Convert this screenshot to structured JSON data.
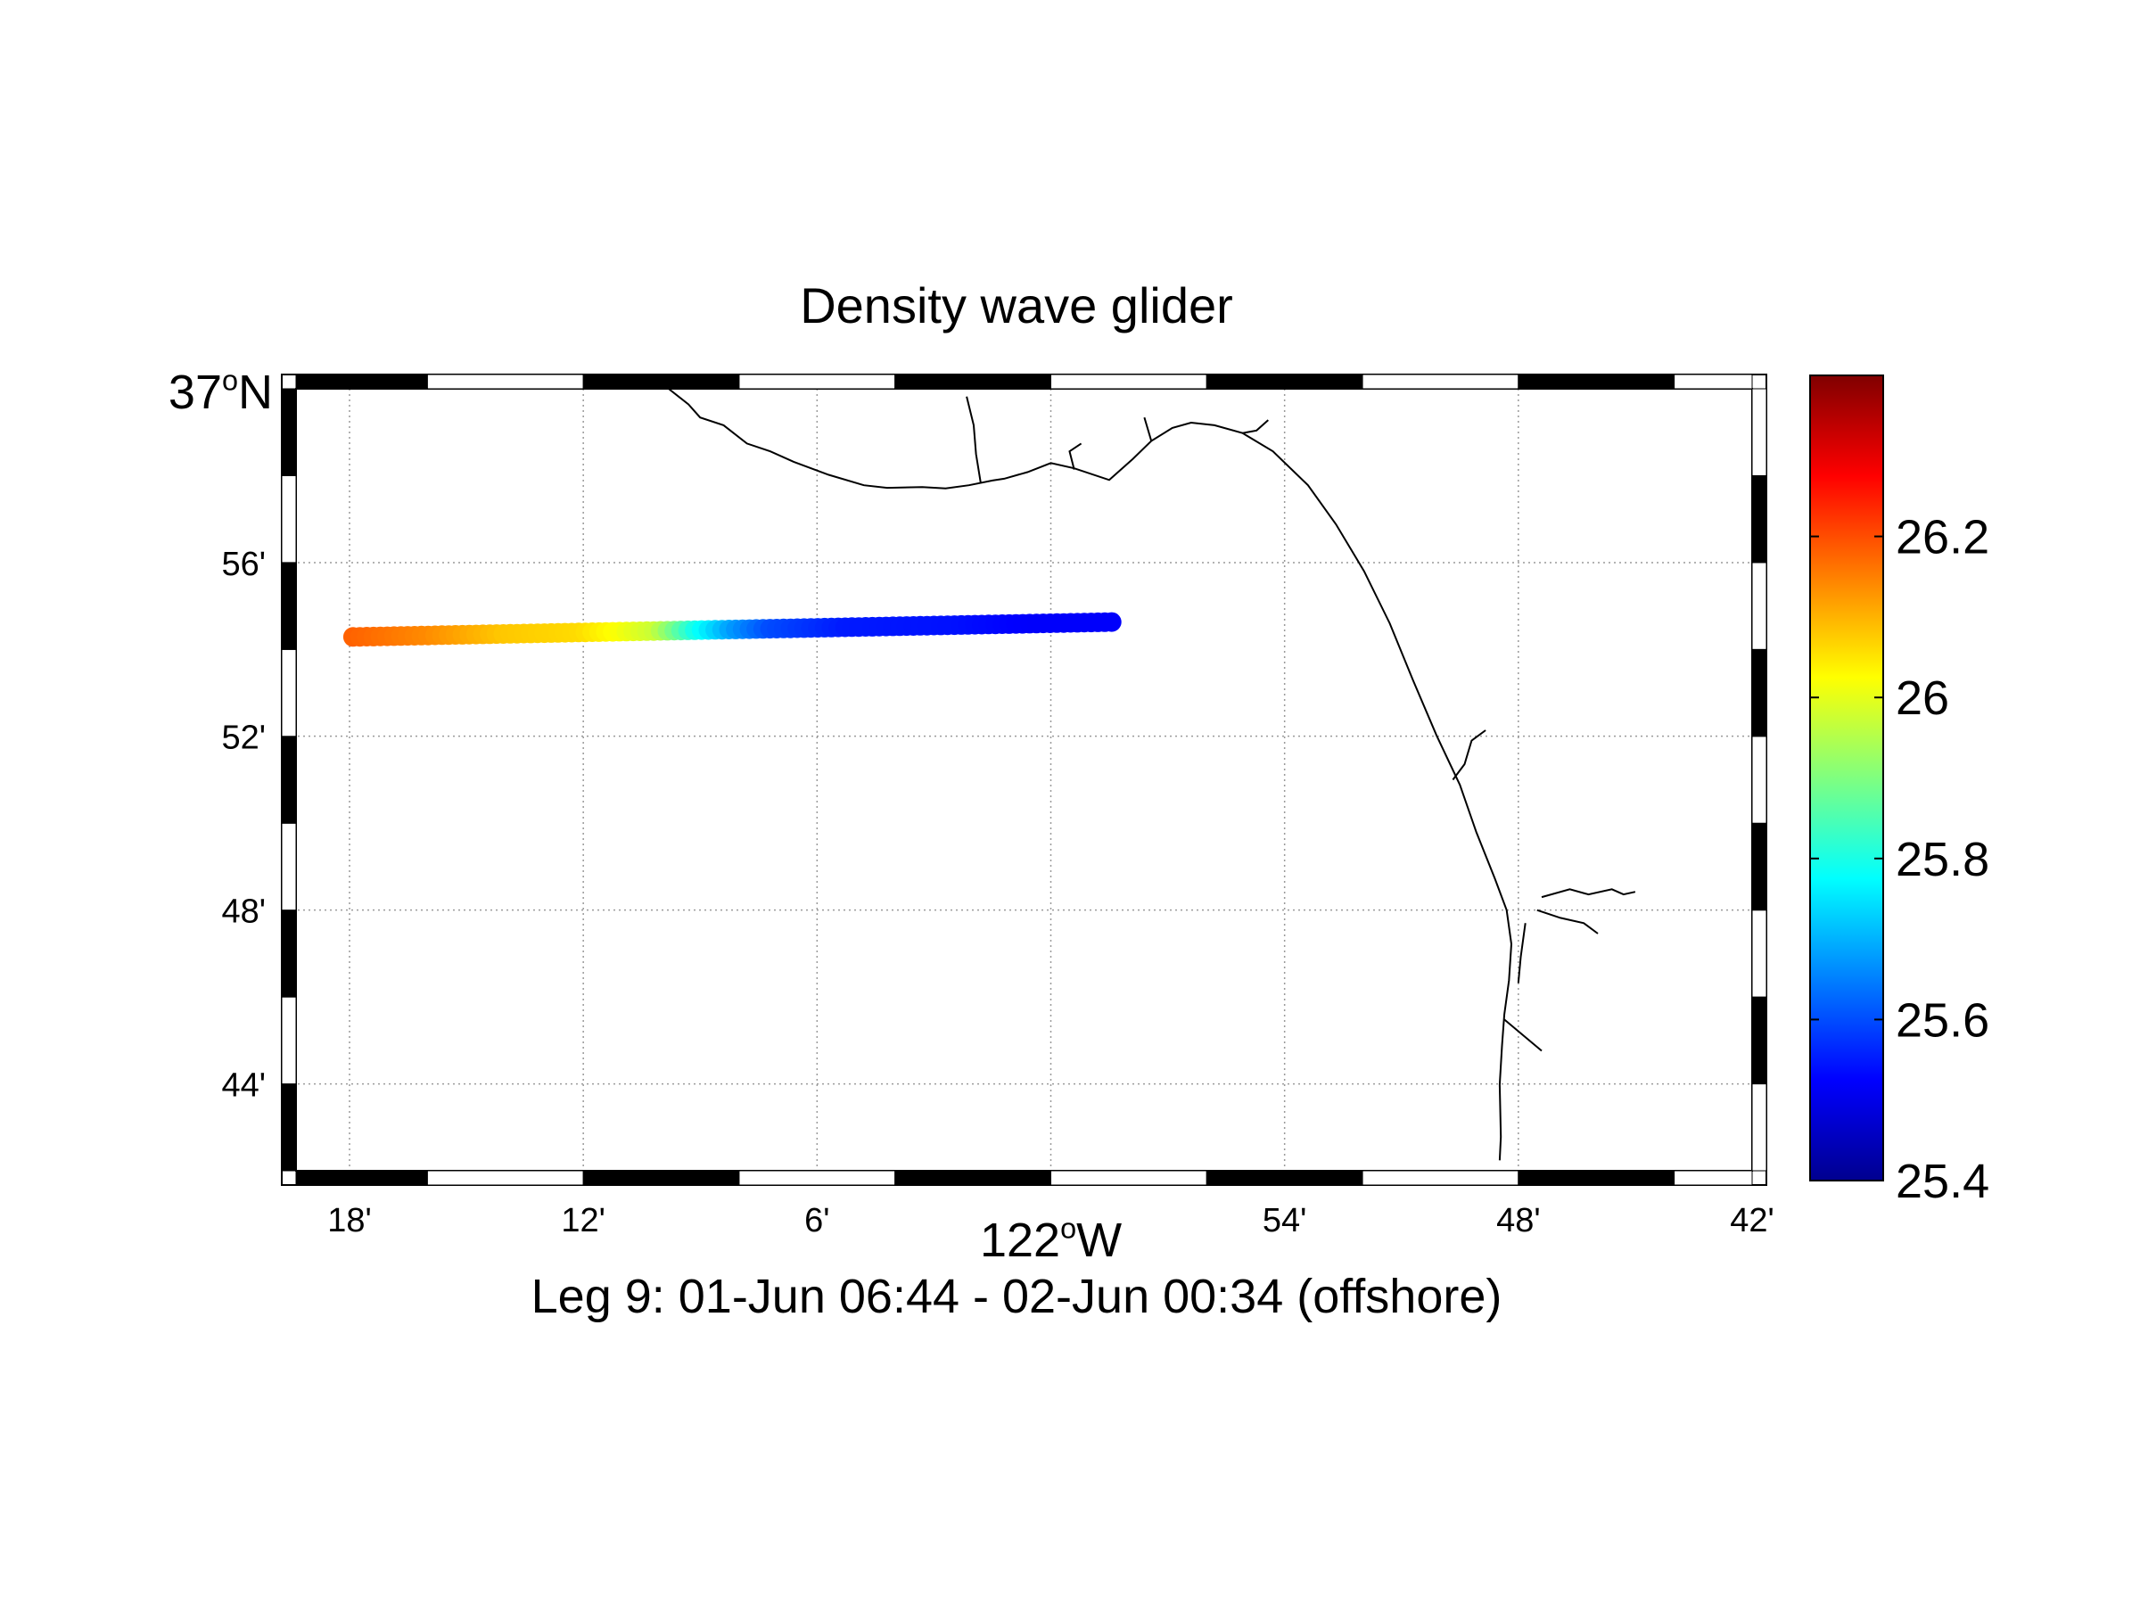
{
  "title": "Density wave glider",
  "subtitle": "Leg 9: 01-Jun 06:44 - 02-Jun 00:34 (offshore)",
  "map": {
    "lon_range": [
      -122.3,
      -121.7
    ],
    "lat_range": [
      36.7,
      37.0
    ],
    "corner_lat_label": {
      "main": "37",
      "sup": "o",
      "suffix": "N"
    },
    "center_lon_label": {
      "main": "122",
      "sup": "o",
      "suffix": "W"
    },
    "lat_ticks": [
      {
        "value": 36.9333,
        "label": "56'"
      },
      {
        "value": 36.8667,
        "label": "52'"
      },
      {
        "value": 36.8,
        "label": "48'"
      },
      {
        "value": 36.7333,
        "label": "44'"
      }
    ],
    "lon_ticks": [
      {
        "value": -122.3,
        "label": "18'"
      },
      {
        "value": -122.2,
        "label": "12'"
      },
      {
        "value": -122.1,
        "label": "6'"
      },
      {
        "value": -121.9,
        "label": "54'"
      },
      {
        "value": -121.8,
        "label": "48'"
      },
      {
        "value": -121.7,
        "label": "42'"
      }
    ],
    "grid": true,
    "frame_style": "alternating black-white border",
    "coastline_color": "#000000"
  },
  "colorbar": {
    "range": [
      25.4,
      26.4
    ],
    "ticks": [
      {
        "value": 25.4,
        "label": "25.4"
      },
      {
        "value": 25.6,
        "label": "25.6"
      },
      {
        "value": 25.8,
        "label": "25.8"
      },
      {
        "value": 26,
        "label": "26"
      },
      {
        "value": 26.2,
        "label": "26.2"
      }
    ],
    "colormap": "jet"
  },
  "track": {
    "lon_start": -122.2985,
    "lat_start": 36.9048,
    "lon_end": -121.974,
    "lat_end": 36.9105,
    "n_points": 112,
    "density_profile": [
      [
        0.0,
        26.18
      ],
      [
        0.1,
        26.14
      ],
      [
        0.2,
        26.08
      ],
      [
        0.3,
        26.06
      ],
      [
        0.35,
        26.02
      ],
      [
        0.4,
        25.97
      ],
      [
        0.45,
        25.8
      ],
      [
        0.5,
        25.68
      ],
      [
        0.55,
        25.6
      ],
      [
        0.65,
        25.55
      ],
      [
        0.8,
        25.54
      ],
      [
        0.9,
        25.52
      ],
      [
        1.0,
        25.52
      ]
    ]
  }
}
